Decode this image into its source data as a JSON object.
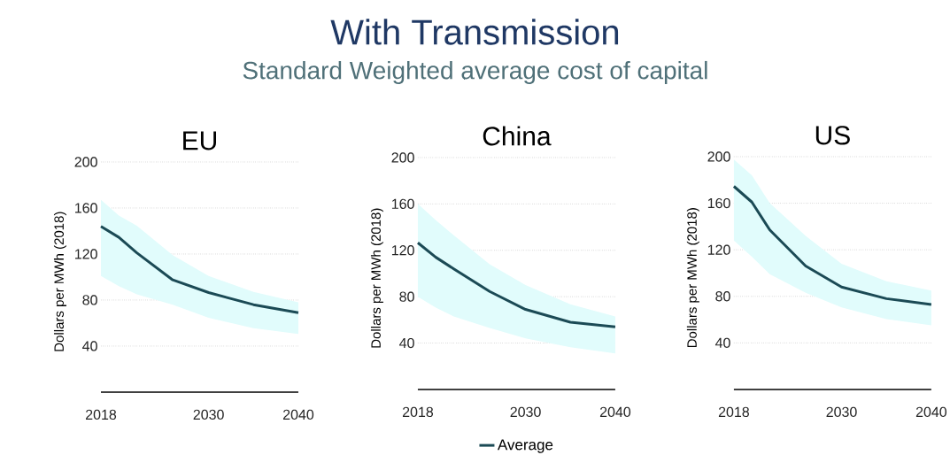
{
  "chart_data": [
    {
      "type": "line",
      "title": "EU",
      "ylabel": "Dollars per MWh (2018)",
      "annotations": [
        "With Transmission",
        "Standard Weighted average cost of capital"
      ],
      "x": [
        2018,
        2020,
        2022,
        2026,
        2030,
        2035,
        2040
      ],
      "xlim": [
        2018,
        2040
      ],
      "xticks": [
        2018,
        2030,
        2040
      ],
      "ylim": [
        0,
        200
      ],
      "yticks": [
        40,
        80,
        120,
        160,
        200
      ],
      "grid": "y",
      "marker": "none",
      "series": [
        {
          "color": "#1b4a55",
          "values": [
            144,
            134.5,
            121,
            97.5,
            86.5,
            76,
            69
          ],
          "lower": [
            101,
            92,
            85,
            76,
            64.5,
            55.5,
            50.5
          ],
          "upper": [
            167,
            153.5,
            144.5,
            119,
            101,
            87,
            78
          ]
        }
      ]
    },
    {
      "type": "line",
      "title": "China",
      "ylabel": "Dollars per MWh (2018)",
      "x": [
        2018,
        2020,
        2022,
        2026,
        2030,
        2035,
        2040
      ],
      "xlim": [
        2018,
        2040
      ],
      "xticks": [
        2018,
        2030,
        2040
      ],
      "ylim": [
        0,
        200
      ],
      "yticks": [
        40,
        80,
        120,
        160,
        200
      ],
      "grid": "y",
      "marker": "none",
      "legend": "bottom",
      "series": [
        {
          "name": "Average",
          "color": "#1b4a55",
          "values": [
            126.5,
            114,
            104,
            84.5,
            69,
            58,
            54
          ],
          "lower": [
            80,
            70.5,
            63,
            53,
            44,
            36.5,
            31
          ],
          "upper": [
            160,
            146,
            133,
            108,
            90,
            73.5,
            63
          ]
        }
      ]
    },
    {
      "type": "line",
      "title": "US",
      "ylabel": "Dollars per MWh (2018)",
      "x": [
        2018,
        2020,
        2022,
        2026,
        2030,
        2035,
        2040
      ],
      "xlim": [
        2018,
        2040
      ],
      "xticks": [
        2018,
        2030,
        2040
      ],
      "ylim": [
        0,
        200
      ],
      "yticks": [
        40,
        80,
        120,
        160,
        200
      ],
      "grid": "y",
      "marker": "none",
      "series": [
        {
          "color": "#1b4a55",
          "values": [
            174.5,
            161,
            137,
            106,
            88,
            78,
            73
          ],
          "lower": [
            128,
            114,
            99,
            83,
            70.5,
            60.5,
            55
          ],
          "upper": [
            197.5,
            184,
            160,
            132,
            108,
            93,
            85
          ]
        }
      ]
    }
  ]
}
